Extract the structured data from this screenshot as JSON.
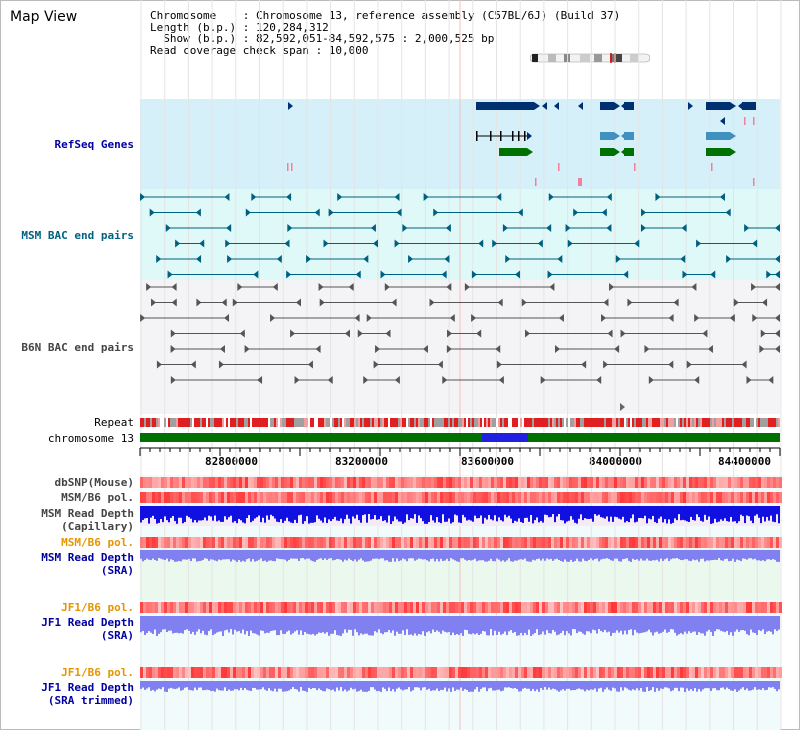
{
  "title": "Map View",
  "header": {
    "line1": "Chromosome    : Chromosome 13, reference assembly (C57BL/6J) (Build 37)",
    "line2": "Length (b.p.) : 120,284,312",
    "line3": "  Show (b.p.) : 82,592,051-84,592,575 : 2,000,525 bp",
    "line4": "Read coverage check span : 10,000"
  },
  "tracks": {
    "refseq": "RefSeq Genes",
    "msm_bac": "MSM BAC end pairs",
    "b6n_bac": "B6N BAC end pairs",
    "repeat": "Repeat",
    "chromosome": "chromosome 13",
    "dbsnp": "dbSNP(Mouse)",
    "msm_b6_pol_1": "MSM/B6 pol.",
    "msm_read_depth_cap_1": "MSM Read Depth",
    "msm_read_depth_cap_2": "(Capillary)",
    "msm_b6_pol_2": "MSM/B6 pol.",
    "msm_read_depth_sra_1": "MSM Read Depth",
    "msm_read_depth_sra_2": "(SRA)",
    "jf1_b6_pol_1": "JF1/B6 pol.",
    "jf1_read_depth_sra_1": "JF1 Read Depth",
    "jf1_read_depth_sra_2": "(SRA)",
    "jf1_b6_pol_2": "JF1/B6 pol.",
    "jf1_read_depth_trim_1": "JF1 Read Depth",
    "jf1_read_depth_trim_2": "(SRA trimmed)"
  },
  "ruler": {
    "ticks": [
      "82800000",
      "83200000",
      "83600000",
      "84000000",
      "84400000"
    ]
  },
  "colors": {
    "refseq_bg": "#d6f0fa",
    "msm_bac_bg": "#dff8f8",
    "b6n_bac_bg": "#f4f4f6",
    "chrom_green": "#007000",
    "chrom_blue": "#2020e0",
    "gene_dark": "#003070",
    "gene_mid": "#4090c0",
    "gene_green": "#007000",
    "msm_bac_line": "#006080",
    "b6n_bac_line": "#555555",
    "depth_dark": "#1010e0",
    "depth_light": "#8080f0"
  }
}
